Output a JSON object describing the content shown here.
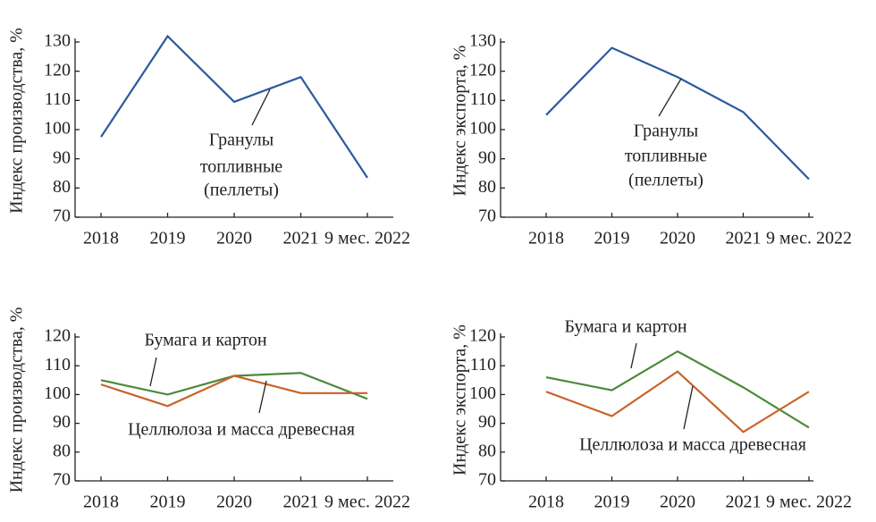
{
  "chart_data": [
    {
      "type": "line",
      "ylabel": "Индекс производства, %",
      "categories": [
        "2018",
        "2019",
        "2020",
        "2021",
        "9 мес. 2022"
      ],
      "ylim": [
        70,
        130
      ],
      "yticks": [
        70,
        80,
        90,
        100,
        110,
        120,
        130
      ],
      "series": [
        {
          "name": "Гранулы топливные (пеллеты)",
          "color": "#2b5a9e",
          "values": [
            97.5,
            132,
            109.5,
            118,
            83.5
          ]
        }
      ],
      "annotation": [
        "Гранулы",
        "топливные",
        "(пеллеты)"
      ]
    },
    {
      "type": "line",
      "ylabel": "Индекс экспорта, %",
      "categories": [
        "2018",
        "2019",
        "2020",
        "2021",
        "9 мес. 2022"
      ],
      "ylim": [
        70,
        130
      ],
      "yticks": [
        70,
        80,
        90,
        100,
        110,
        120,
        130
      ],
      "series": [
        {
          "name": "Гранулы топливные (пеллеты)",
          "color": "#2b5a9e",
          "values": [
            105,
            128,
            118,
            106,
            83
          ]
        }
      ],
      "annotation": [
        "Гранулы",
        "топливные",
        "(пеллеты)"
      ]
    },
    {
      "type": "line",
      "ylabel": "Индекс производства, %",
      "categories": [
        "2018",
        "2019",
        "2020",
        "2021",
        "9 мес. 2022"
      ],
      "ylim": [
        70,
        120
      ],
      "yticks": [
        70,
        80,
        90,
        100,
        110,
        120
      ],
      "series": [
        {
          "name": "Бумага и картон",
          "color": "#4a8a3a",
          "values": [
            105,
            100,
            106.5,
            107.5,
            98.5
          ]
        },
        {
          "name": "Целлюлоза и масса древесная",
          "color": "#c8632a",
          "values": [
            103.5,
            96,
            106.5,
            100.5,
            100.5
          ]
        }
      ]
    },
    {
      "type": "line",
      "ylabel": "Индекс экспорта, %",
      "categories": [
        "2018",
        "2019",
        "2020",
        "2021",
        "9 мес. 2022"
      ],
      "ylim": [
        70,
        120
      ],
      "yticks": [
        70,
        80,
        90,
        100,
        110,
        120
      ],
      "series": [
        {
          "name": "Бумага и картон",
          "color": "#4a8a3a",
          "values": [
            106,
            101.5,
            115,
            102.5,
            88.5
          ]
        },
        {
          "name": "Целлюлоза и масса древесная",
          "color": "#c8632a",
          "values": [
            101,
            92.5,
            108,
            87,
            101
          ]
        }
      ]
    }
  ]
}
